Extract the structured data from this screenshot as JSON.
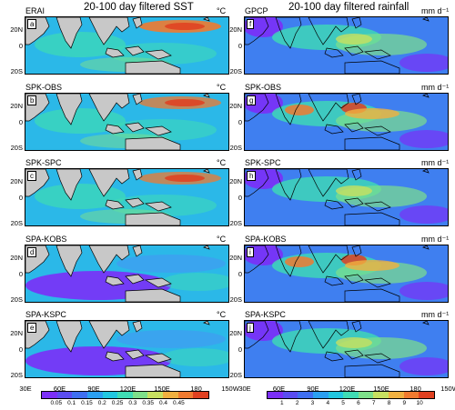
{
  "left": {
    "title": "20-100 day filtered SST",
    "unit": "°C",
    "panels": [
      {
        "name": "ERAI",
        "letter": "a"
      },
      {
        "name": "SPK-OBS",
        "letter": "b"
      },
      {
        "name": "SPK-SPC",
        "letter": "c"
      },
      {
        "name": "SPA-KOBS",
        "letter": "d"
      },
      {
        "name": "SPA-KSPC",
        "letter": "e"
      }
    ],
    "colorbar": {
      "labels": [
        "0.05",
        "0.1",
        "0.15",
        "0.2",
        "0.25",
        "0.3",
        "0.35",
        "0.4",
        "0.45"
      ],
      "colors": [
        "#7b2ff7",
        "#5a4df0",
        "#3f6ff0",
        "#2b9ff0",
        "#22c7e0",
        "#3fdcb4",
        "#7ee08a",
        "#c7e060",
        "#f0b040",
        "#f07a30",
        "#e04020"
      ]
    }
  },
  "right": {
    "title": "20-100 day filtered rainfall",
    "unit": "mm d⁻¹",
    "panels": [
      {
        "name": "GPCP",
        "letter": "f"
      },
      {
        "name": "SPK-OBS",
        "letter": "g"
      },
      {
        "name": "SPK-SPC",
        "letter": "h"
      },
      {
        "name": "SPA-KOBS",
        "letter": "i"
      },
      {
        "name": "SPA-KSPC",
        "letter": "j"
      }
    ],
    "colorbar": {
      "labels": [
        "1",
        "2",
        "3",
        "4",
        "5",
        "6",
        "7",
        "8",
        "9",
        "10"
      ],
      "colors": [
        "#7b2ff7",
        "#5a4df0",
        "#3f6ff0",
        "#2b9ff0",
        "#22c7e0",
        "#3fdcb4",
        "#7ee08a",
        "#c7e060",
        "#f0b040",
        "#f07a30",
        "#e04020"
      ]
    }
  },
  "axes": {
    "lat_labels": [
      "20N",
      "0",
      "20S"
    ],
    "lon_labels": [
      "30E",
      "60E",
      "90E",
      "120E",
      "150E",
      "180",
      "150W"
    ]
  },
  "colors": {
    "land": "#c8c8c8",
    "low": "#7b2ff7",
    "mid": "#3fdcb4",
    "high": "#e04020"
  }
}
